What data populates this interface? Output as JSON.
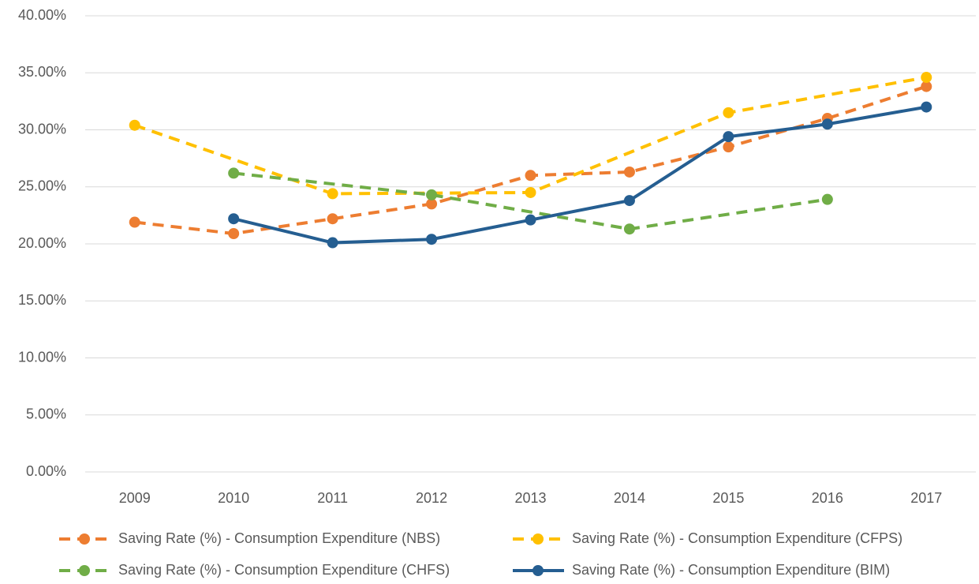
{
  "chart_data": {
    "type": "line",
    "categories": [
      "2009",
      "2010",
      "2011",
      "2012",
      "2013",
      "2014",
      "2015",
      "2016",
      "2017"
    ],
    "series": [
      {
        "name": "Saving Rate (%) - Consumption Expenditure (NBS)",
        "color": "#ED7D31",
        "dash": true,
        "values": [
          21.9,
          20.9,
          22.2,
          23.5,
          26.0,
          26.3,
          28.5,
          31.0,
          33.8
        ]
      },
      {
        "name": "Saving Rate (%) - Consumption Expenditure (CFPS)",
        "color": "#FFC000",
        "dash": true,
        "values": [
          30.4,
          null,
          24.4,
          null,
          24.5,
          null,
          31.5,
          null,
          34.6
        ]
      },
      {
        "name": "Saving Rate (%) - Consumption Expenditure (CHFS)",
        "color": "#70AD47",
        "dash": true,
        "values": [
          null,
          26.2,
          null,
          24.3,
          null,
          21.3,
          null,
          23.9,
          null
        ]
      },
      {
        "name": "Saving Rate (%) - Consumption Expenditure (BIM)",
        "color": "#255E91",
        "dash": false,
        "values": [
          null,
          22.2,
          20.1,
          20.4,
          22.1,
          23.8,
          29.4,
          30.5,
          32.0
        ]
      }
    ],
    "span_gaps": true,
    "ylim": [
      0,
      40
    ],
    "yticks": [
      {
        "value": 0,
        "label": "0.00%"
      },
      {
        "value": 5,
        "label": "5.00%"
      },
      {
        "value": 10,
        "label": "10.00%"
      },
      {
        "value": 15,
        "label": "15.00%"
      },
      {
        "value": 20,
        "label": "20.00%"
      },
      {
        "value": 25,
        "label": "25.00%"
      },
      {
        "value": 30,
        "label": "30.00%"
      },
      {
        "value": 35,
        "label": "35.00%"
      },
      {
        "value": 40,
        "label": "40.00%"
      }
    ],
    "grid": true
  }
}
